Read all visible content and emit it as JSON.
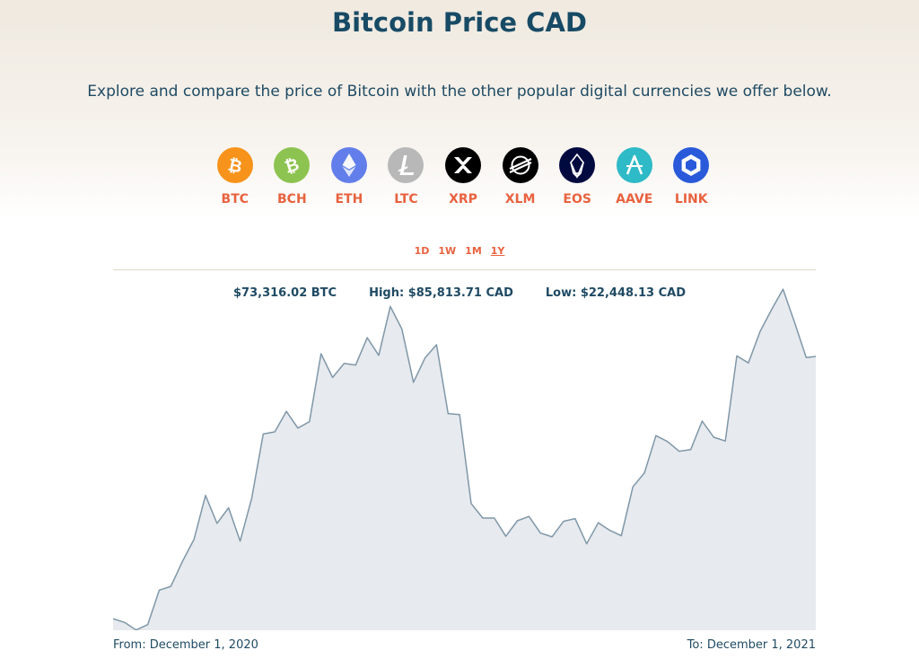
{
  "header": {
    "title": "Bitcoin Price CAD",
    "subtitle": "Explore and compare the price of Bitcoin with the other popular digital currencies we offer below."
  },
  "coins": [
    {
      "label": "BTC",
      "icon": "bitcoin-icon",
      "color": "#f7931a"
    },
    {
      "label": "BCH",
      "icon": "bitcoin-cash-icon",
      "color": "#8dc351"
    },
    {
      "label": "ETH",
      "icon": "ethereum-icon",
      "color": "#627eea"
    },
    {
      "label": "LTC",
      "icon": "litecoin-icon",
      "color": "#b8b8b8"
    },
    {
      "label": "XRP",
      "icon": "xrp-icon",
      "color": "#000000"
    },
    {
      "label": "XLM",
      "icon": "stellar-icon",
      "color": "#000000"
    },
    {
      "label": "EOS",
      "icon": "eos-icon",
      "color": "#000a3f"
    },
    {
      "label": "AAVE",
      "icon": "aave-icon",
      "color": "#2ebac6"
    },
    {
      "label": "LINK",
      "icon": "chainlink-icon",
      "color": "#2a5ada"
    }
  ],
  "ranges": [
    {
      "label": "1D",
      "active": false
    },
    {
      "label": "1W",
      "active": false
    },
    {
      "label": "1M",
      "active": false
    },
    {
      "label": "1Y",
      "active": true
    }
  ],
  "stats": {
    "price": "$73,316.02 BTC",
    "high": "High: $85,813.71 CAD",
    "low": "Low: $22,448.13 CAD"
  },
  "footer": {
    "from": "From: December 1, 2020",
    "to": "To: December 1, 2021"
  },
  "colors": {
    "accent": "#e8623f",
    "heading": "#174a65",
    "line": "#7f97a8",
    "fill": "#e7eaee"
  },
  "chart_data": {
    "type": "area",
    "x_start": "2020-12-01",
    "x_end": "2021-12-01",
    "ylim": [
      22448.13,
      85813.71
    ],
    "x": [
      "2020-12-01",
      "2020-12-07",
      "2020-12-13",
      "2020-12-19",
      "2020-12-25",
      "2020-12-31",
      "2021-01-06",
      "2021-01-12",
      "2021-01-18",
      "2021-01-24",
      "2021-01-30",
      "2021-02-05",
      "2021-02-11",
      "2021-02-17",
      "2021-02-23",
      "2021-03-01",
      "2021-03-07",
      "2021-03-13",
      "2021-03-19",
      "2021-03-25",
      "2021-03-31",
      "2021-04-06",
      "2021-04-12",
      "2021-04-18",
      "2021-04-24",
      "2021-04-30",
      "2021-05-06",
      "2021-05-12",
      "2021-05-18",
      "2021-05-24",
      "2021-05-30",
      "2021-06-05",
      "2021-06-11",
      "2021-06-17",
      "2021-06-23",
      "2021-06-29",
      "2021-07-05",
      "2021-07-11",
      "2021-07-17",
      "2021-07-23",
      "2021-07-29",
      "2021-08-04",
      "2021-08-10",
      "2021-08-16",
      "2021-08-22",
      "2021-08-28",
      "2021-09-03",
      "2021-09-09",
      "2021-09-15",
      "2021-09-21",
      "2021-09-27",
      "2021-10-03",
      "2021-10-09",
      "2021-10-15",
      "2021-10-21",
      "2021-10-27",
      "2021-11-02",
      "2021-11-08",
      "2021-11-14",
      "2021-11-20",
      "2021-11-26",
      "2021-12-01"
    ],
    "values": [
      24600,
      23900,
      22500,
      23500,
      29900,
      30600,
      35200,
      39300,
      47500,
      42300,
      45200,
      39000,
      47000,
      58900,
      59300,
      63100,
      60000,
      61200,
      73800,
      69400,
      72000,
      71700,
      76800,
      73500,
      82600,
      78400,
      68500,
      73000,
      75500,
      62700,
      62500,
      46000,
      43300,
      43300,
      39900,
      42800,
      43600,
      40500,
      39800,
      42700,
      43200,
      38500,
      42400,
      41000,
      40000,
      49100,
      51700,
      58600,
      57500,
      55700,
      56000,
      61300,
      58300,
      57600,
      73400,
      72100,
      77900,
      82000,
      85800,
      79600,
      73100,
      73300
    ]
  }
}
